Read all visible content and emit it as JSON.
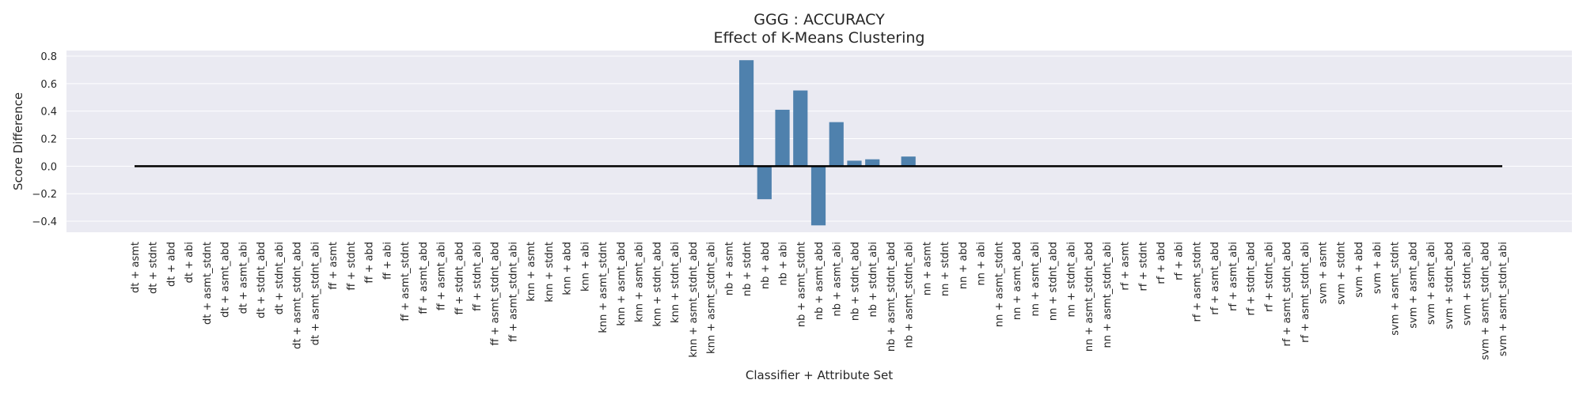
{
  "chart_data": {
    "type": "bar",
    "title": "GGG : ACCURACY",
    "subtitle": "Effect of K-Means Clustering",
    "xlabel": "Classifier + Attribute Set",
    "ylabel": "Score Difference",
    "ylim": [
      -0.48,
      0.84
    ],
    "yticks": [
      -0.4,
      -0.2,
      0.0,
      0.2,
      0.4,
      0.6,
      0.8
    ],
    "ytick_labels": [
      "−0.4",
      "−0.2",
      "0.0",
      "0.2",
      "0.4",
      "0.6",
      "0.8"
    ],
    "grid": true,
    "zero_line": true,
    "colors": {
      "bar": "#4f81ad",
      "plot_background": "#eaeaf2",
      "grid": "#ffffff",
      "zero_line": "#000000",
      "text": "#262626"
    },
    "categories": [
      "dt + asmt",
      "dt + stdnt",
      "dt + abd",
      "dt + abi",
      "dt + asmt_stdnt",
      "dt + asmt_abd",
      "dt + asmt_abi",
      "dt + stdnt_abd",
      "dt + stdnt_abi",
      "dt + asmt_stdnt_abd",
      "dt + asmt_stdnt_abi",
      "ff + asmt",
      "ff + stdnt",
      "ff + abd",
      "ff + abi",
      "ff + asmt_stdnt",
      "ff + asmt_abd",
      "ff + asmt_abi",
      "ff + stdnt_abd",
      "ff + stdnt_abi",
      "ff + asmt_stdnt_abd",
      "ff + asmt_stdnt_abi",
      "knn + asmt",
      "knn + stdnt",
      "knn + abd",
      "knn + abi",
      "knn + asmt_stdnt",
      "knn + asmt_abd",
      "knn + asmt_abi",
      "knn + stdnt_abd",
      "knn + stdnt_abi",
      "knn + asmt_stdnt_abd",
      "knn + asmt_stdnt_abi",
      "nb + asmt",
      "nb + stdnt",
      "nb + abd",
      "nb + abi",
      "nb + asmt_stdnt",
      "nb + asmt_abd",
      "nb + asmt_abi",
      "nb + stdnt_abd",
      "nb + stdnt_abi",
      "nb + asmt_stdnt_abd",
      "nb + asmt_stdnt_abi",
      "nn + asmt",
      "nn + stdnt",
      "nn + abd",
      "nn + abi",
      "nn + asmt_stdnt",
      "nn + asmt_abd",
      "nn + asmt_abi",
      "nn + stdnt_abd",
      "nn + stdnt_abi",
      "nn + asmt_stdnt_abd",
      "nn + asmt_stdnt_abi",
      "rf + asmt",
      "rf + stdnt",
      "rf + abd",
      "rf + abi",
      "rf + asmt_stdnt",
      "rf + asmt_abd",
      "rf + asmt_abi",
      "rf + stdnt_abd",
      "rf + stdnt_abi",
      "rf + asmt_stdnt_abd",
      "rf + asmt_stdnt_abi",
      "svm + asmt",
      "svm + stdnt",
      "svm + abd",
      "svm + abi",
      "svm + asmt_stdnt",
      "svm + asmt_abd",
      "svm + asmt_abi",
      "svm + stdnt_abd",
      "svm + stdnt_abi",
      "svm + asmt_stdnt_abd",
      "svm + asmt_stdnt_abi"
    ],
    "values": [
      0,
      0,
      0,
      0,
      0,
      0,
      0,
      0,
      0,
      0,
      0,
      0,
      0,
      0,
      0,
      0,
      0,
      0,
      0,
      0,
      0,
      0,
      0,
      0,
      0,
      0,
      0,
      0,
      0,
      0,
      0,
      0,
      0,
      0,
      0.77,
      -0.24,
      0.41,
      0.55,
      -0.43,
      0.32,
      0.04,
      0.05,
      0,
      0.07,
      0,
      0,
      0,
      0,
      0,
      0,
      0,
      0,
      0,
      0,
      0,
      0,
      0,
      0,
      0,
      0,
      0,
      0,
      0,
      0,
      0,
      0,
      0,
      0,
      0,
      0,
      0,
      0,
      0,
      0,
      0,
      0,
      0
    ]
  }
}
